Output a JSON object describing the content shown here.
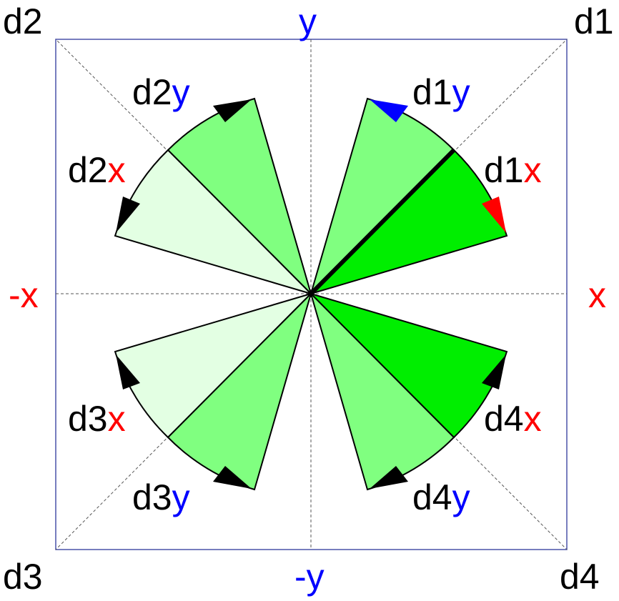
{
  "corners": {
    "d1": "d1",
    "d2": "d2",
    "d3": "d3",
    "d4": "d4"
  },
  "axes": {
    "pos_y": "y",
    "neg_y": "-y",
    "pos_x": "x",
    "neg_x": "-x"
  },
  "sector_labels": {
    "d1y": {
      "prefix": "d1",
      "suffix": "y"
    },
    "d1x": {
      "prefix": "d1",
      "suffix": "x"
    },
    "d2y": {
      "prefix": "d2",
      "suffix": "y"
    },
    "d2x": {
      "prefix": "d2",
      "suffix": "x"
    },
    "d3x": {
      "prefix": "d3",
      "suffix": "x"
    },
    "d3y": {
      "prefix": "d3",
      "suffix": "y"
    },
    "d4x": {
      "prefix": "d4",
      "suffix": "x"
    },
    "d4y": {
      "prefix": "d4",
      "suffix": "y"
    }
  },
  "colors": {
    "frame": "#4a52a8",
    "guide": "#555555",
    "fill_bright": "#00ee00",
    "fill_medium": "#80ff80",
    "fill_light": "#e3ffe3",
    "arrow_blue": "#0000ff",
    "arrow_red": "#ff0000",
    "arrow_black": "#000000",
    "text_red": "#ff0000",
    "text_blue": "#0000ff"
  }
}
